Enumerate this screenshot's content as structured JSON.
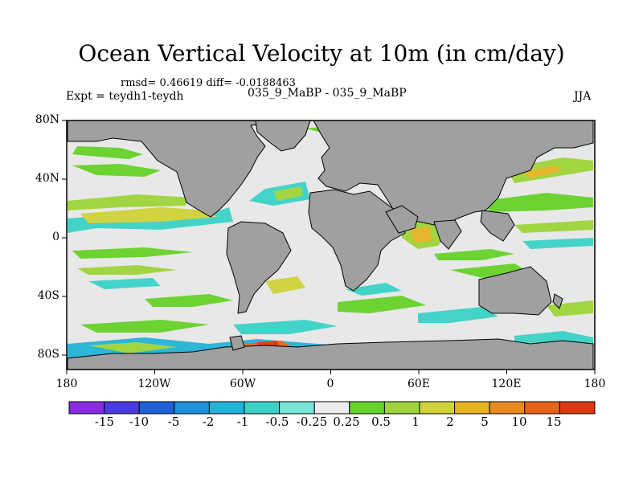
{
  "title": "Ocean Vertical Velocity at 10m (in cm/day)",
  "stats": "rmsd= 0.46619 diff= -0.0188463",
  "expt": "Expt = teydh1-teydh",
  "center_label": "035_9_MaBP - 035_9_MaBP",
  "season": "JJA",
  "lat_ticks": [
    "80N",
    "40N",
    "0",
    "40S",
    "80S"
  ],
  "lon_ticks": [
    "180",
    "120W",
    "60W",
    "0",
    "60E",
    "120E",
    "180"
  ],
  "colorbar": {
    "labels": [
      "-15",
      "-10",
      "-5",
      "-2",
      "-1",
      "-0.5",
      "-0.25",
      "0.25",
      "0.5",
      "1",
      "2",
      "5",
      "10",
      "15"
    ],
    "colors": [
      "#8a2be2",
      "#4a3ae0",
      "#1f5fd8",
      "#1e90dc",
      "#22b4d8",
      "#3cd2c8",
      "#76e6d6",
      "#ececec",
      "#66d22a",
      "#9ed43a",
      "#cfd23a",
      "#e6b422",
      "#ea8a1e",
      "#e8641a",
      "#dc3a12"
    ]
  },
  "land_color": "#a0a0a0",
  "ocean_color": "#e8e8e8"
}
